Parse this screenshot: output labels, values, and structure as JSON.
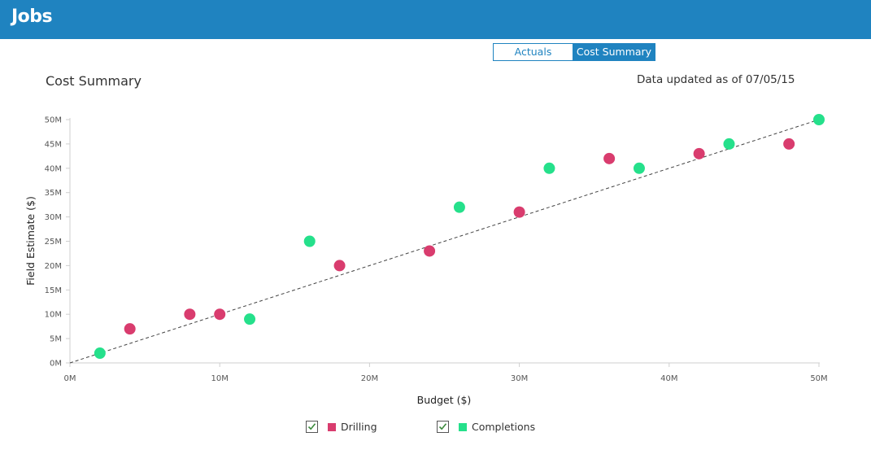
{
  "header": {
    "title": "Jobs"
  },
  "view_toggle": {
    "actuals_label": "Actuals",
    "cost_summary_label": "Cost Summary",
    "selected": "Cost Summary"
  },
  "page": {
    "chart_title": "Cost Summary",
    "updated_text": "Data updated as of 07/05/15"
  },
  "legend": {
    "items": [
      {
        "label": "Drilling",
        "color": "#d93c6e",
        "checked": true
      },
      {
        "label": "Completions",
        "color": "#25e08b",
        "checked": true
      }
    ]
  },
  "colors": {
    "header": "#1f83c0",
    "drilling": "#d93c6e",
    "completions": "#25e08b"
  },
  "chart_data": {
    "type": "scatter",
    "title": "Cost Summary",
    "xlabel": "Budget ($)",
    "ylabel": "Field Estimate ($)",
    "xlim": [
      0,
      50000000
    ],
    "ylim": [
      0,
      50000000
    ],
    "x_ticks": [
      0,
      10000000,
      20000000,
      30000000,
      40000000,
      50000000
    ],
    "x_tick_labels": [
      "0M",
      "10M",
      "20M",
      "30M",
      "40M",
      "50M"
    ],
    "y_ticks": [
      0,
      5000000,
      10000000,
      15000000,
      20000000,
      25000000,
      30000000,
      35000000,
      40000000,
      45000000,
      50000000
    ],
    "y_tick_labels": [
      "0M",
      "5M",
      "10M",
      "15M",
      "20M",
      "25M",
      "30M",
      "35M",
      "40M",
      "45M",
      "50M"
    ],
    "grid": false,
    "reference_line": {
      "style": "dashed",
      "from": [
        0,
        0
      ],
      "to": [
        50000000,
        50000000
      ]
    },
    "series": [
      {
        "name": "Drilling",
        "color": "#d93c6e",
        "points": [
          {
            "x": 4000000,
            "y": 7000000
          },
          {
            "x": 8000000,
            "y": 10000000
          },
          {
            "x": 10000000,
            "y": 10000000
          },
          {
            "x": 18000000,
            "y": 20000000
          },
          {
            "x": 24000000,
            "y": 23000000
          },
          {
            "x": 30000000,
            "y": 31000000
          },
          {
            "x": 36000000,
            "y": 42000000
          },
          {
            "x": 42000000,
            "y": 43000000
          },
          {
            "x": 48000000,
            "y": 45000000
          }
        ]
      },
      {
        "name": "Completions",
        "color": "#25e08b",
        "points": [
          {
            "x": 2000000,
            "y": 2000000
          },
          {
            "x": 12000000,
            "y": 9000000
          },
          {
            "x": 16000000,
            "y": 25000000
          },
          {
            "x": 26000000,
            "y": 32000000
          },
          {
            "x": 32000000,
            "y": 40000000
          },
          {
            "x": 38000000,
            "y": 40000000
          },
          {
            "x": 44000000,
            "y": 45000000
          },
          {
            "x": 50000000,
            "y": 50000000
          }
        ]
      }
    ]
  }
}
